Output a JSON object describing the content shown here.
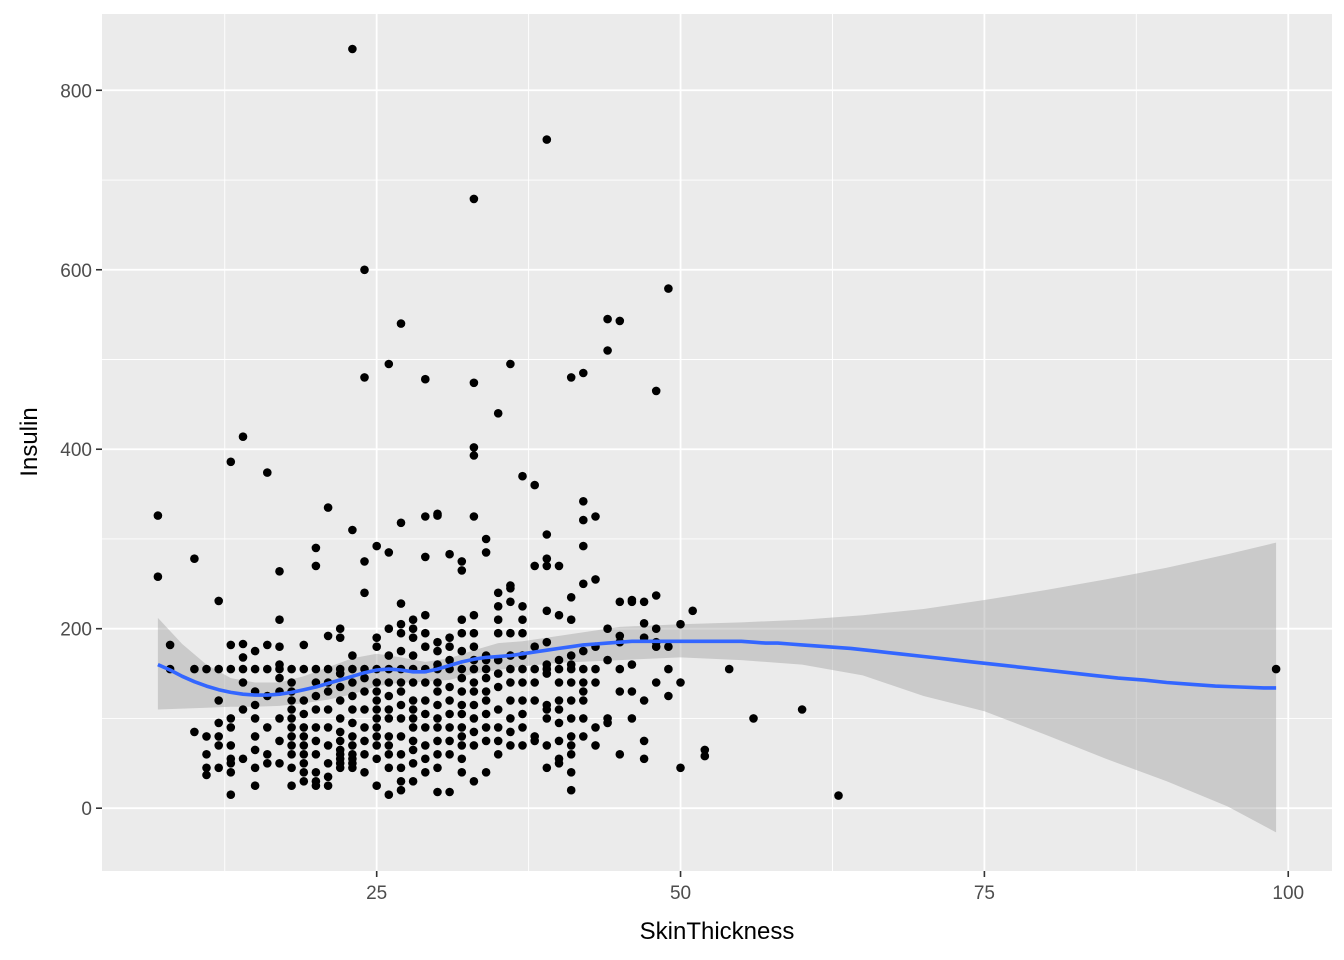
{
  "chart_data": {
    "type": "scatter",
    "title": "",
    "xlabel": "SkinThickness",
    "ylabel": "Insulin",
    "xlim": [
      2.4,
      103.6
    ],
    "ylim": [
      -70,
      885
    ],
    "x_ticks": [
      25,
      50,
      75,
      100
    ],
    "x_tick_labels": [
      "25",
      "50",
      "75",
      "100"
    ],
    "y_ticks": [
      0,
      200,
      400,
      600,
      800
    ],
    "y_tick_labels": [
      "0",
      "200",
      "400",
      "600",
      "800"
    ],
    "grid": true,
    "legend": "none",
    "colors": {
      "panel": "#EBEBEB",
      "grid": "#FFFFFF",
      "point": "#000000",
      "smooth_line": "#3366FF",
      "ribbon": "#999999"
    },
    "series": [
      {
        "kind": "points",
        "x": [
          7,
          7,
          8,
          8,
          10,
          10,
          10,
          11,
          11,
          11,
          11,
          11,
          12,
          12,
          12,
          12,
          12,
          12,
          12,
          13,
          13,
          13,
          13,
          13,
          13,
          13,
          13,
          13,
          13,
          14,
          14,
          14,
          14,
          14,
          14,
          14,
          15,
          15,
          15,
          15,
          15,
          15,
          15,
          15,
          15,
          16,
          16,
          16,
          16,
          16,
          16,
          16,
          17,
          17,
          17,
          17,
          17,
          17,
          17,
          17,
          17,
          17,
          18,
          18,
          18,
          18,
          18,
          18,
          18,
          18,
          18,
          18,
          18,
          18,
          19,
          19,
          19,
          19,
          19,
          19,
          19,
          19,
          19,
          19,
          19,
          20,
          20,
          20,
          20,
          20,
          20,
          20,
          20,
          20,
          20,
          20,
          20,
          21,
          21,
          21,
          21,
          21,
          21,
          21,
          21,
          21,
          21,
          21,
          22,
          22,
          22,
          22,
          22,
          22,
          22,
          22,
          22,
          22,
          22,
          22,
          22,
          22,
          23,
          23,
          23,
          23,
          23,
          23,
          23,
          23,
          23,
          23,
          23,
          23,
          23,
          23,
          24,
          24,
          24,
          24,
          24,
          24,
          24,
          24,
          24,
          24,
          24,
          24,
          25,
          25,
          25,
          25,
          25,
          25,
          25,
          25,
          25,
          25,
          25,
          25,
          25,
          25,
          26,
          26,
          26,
          26,
          26,
          26,
          26,
          26,
          26,
          26,
          26,
          26,
          26,
          26,
          27,
          27,
          27,
          27,
          27,
          27,
          27,
          27,
          27,
          27,
          27,
          27,
          27,
          27,
          27,
          27,
          28,
          28,
          28,
          28,
          28,
          28,
          28,
          28,
          28,
          28,
          28,
          28,
          28,
          28,
          29,
          29,
          29,
          29,
          29,
          29,
          29,
          29,
          29,
          29,
          29,
          29,
          29,
          29,
          30,
          30,
          30,
          30,
          30,
          30,
          30,
          30,
          30,
          30,
          30,
          30,
          30,
          30,
          30,
          31,
          31,
          31,
          31,
          31,
          31,
          31,
          31,
          31,
          31,
          31,
          31,
          32,
          32,
          32,
          32,
          32,
          32,
          32,
          32,
          32,
          32,
          32,
          32,
          32,
          32,
          32,
          33,
          33,
          33,
          33,
          33,
          33,
          33,
          33,
          33,
          33,
          33,
          33,
          33,
          33,
          33,
          33,
          33,
          34,
          34,
          34,
          34,
          34,
          34,
          34,
          34,
          34,
          34,
          34,
          34,
          35,
          35,
          35,
          35,
          35,
          35,
          35,
          35,
          35,
          35,
          35,
          35,
          36,
          36,
          36,
          36,
          36,
          36,
          36,
          36,
          36,
          36,
          36,
          36,
          37,
          37,
          37,
          37,
          37,
          37,
          37,
          37,
          37,
          37,
          37,
          38,
          38,
          38,
          38,
          38,
          38,
          38,
          38,
          39,
          39,
          39,
          39,
          39,
          39,
          39,
          39,
          39,
          39,
          39,
          39,
          39,
          39,
          40,
          40,
          40,
          40,
          40,
          40,
          40,
          40,
          40,
          40,
          40,
          41,
          41,
          41,
          41,
          41,
          41,
          41,
          41,
          41,
          41,
          41,
          41,
          41,
          41,
          42,
          42,
          42,
          42,
          42,
          42,
          42,
          42,
          42,
          42,
          42,
          42,
          43,
          43,
          43,
          43,
          43,
          43,
          43,
          44,
          44,
          44,
          44,
          44,
          44,
          45,
          45,
          45,
          45,
          45,
          45,
          45,
          46,
          46,
          46,
          46,
          46,
          47,
          47,
          47,
          47,
          47,
          47,
          48,
          48,
          48,
          48,
          48,
          48,
          49,
          49,
          49,
          49,
          50,
          50,
          50,
          51,
          52,
          52,
          54,
          56,
          60,
          63,
          99
        ],
        "y": [
          326,
          258,
          182,
          155,
          278,
          155,
          85,
          37,
          155,
          80,
          60,
          45,
          231,
          155,
          120,
          95,
          80,
          70,
          45,
          386,
          182,
          155,
          100,
          90,
          70,
          55,
          50,
          40,
          15,
          414,
          183,
          168,
          155,
          140,
          110,
          55,
          175,
          155,
          130,
          115,
          100,
          80,
          65,
          45,
          25,
          374,
          182,
          155,
          125,
          90,
          60,
          50,
          264,
          210,
          180,
          160,
          155,
          145,
          130,
          100,
          75,
          50,
          155,
          140,
          130,
          120,
          110,
          100,
          90,
          80,
          70,
          60,
          45,
          25,
          182,
          155,
          120,
          105,
          90,
          80,
          70,
          60,
          50,
          40,
          30,
          290,
          270,
          155,
          140,
          125,
          110,
          90,
          75,
          60,
          40,
          30,
          25,
          335,
          192,
          155,
          140,
          130,
          110,
          90,
          70,
          50,
          35,
          25,
          200,
          190,
          155,
          150,
          135,
          120,
          100,
          85,
          75,
          65,
          60,
          55,
          50,
          45,
          846,
          310,
          170,
          155,
          140,
          125,
          110,
          95,
          80,
          70,
          60,
          55,
          50,
          45,
          600,
          480,
          275,
          240,
          155,
          145,
          130,
          110,
          90,
          75,
          60,
          40,
          292,
          190,
          180,
          155,
          140,
          130,
          120,
          110,
          100,
          90,
          80,
          70,
          55,
          25,
          495,
          285,
          200,
          170,
          155,
          140,
          125,
          110,
          100,
          80,
          70,
          60,
          45,
          15,
          540,
          318,
          228,
          205,
          195,
          175,
          155,
          140,
          130,
          115,
          100,
          80,
          60,
          45,
          30,
          20,
          210,
          200,
          190,
          170,
          155,
          140,
          120,
          110,
          100,
          90,
          75,
          65,
          50,
          30,
          478,
          325,
          280,
          215,
          195,
          180,
          155,
          140,
          120,
          105,
          90,
          70,
          55,
          40,
          328,
          326,
          185,
          175,
          160,
          155,
          140,
          130,
          115,
          100,
          90,
          75,
          60,
          45,
          18,
          283,
          190,
          180,
          165,
          155,
          135,
          120,
          105,
          90,
          75,
          60,
          18,
          275,
          265,
          210,
          195,
          175,
          155,
          145,
          130,
          115,
          105,
          90,
          80,
          70,
          55,
          40,
          679,
          474,
          402,
          393,
          325,
          215,
          195,
          180,
          165,
          155,
          140,
          130,
          115,
          100,
          85,
          70,
          30,
          300,
          285,
          170,
          165,
          155,
          145,
          130,
          120,
          105,
          90,
          75,
          40,
          440,
          240,
          225,
          210,
          195,
          165,
          150,
          135,
          110,
          90,
          75,
          60,
          495,
          248,
          245,
          230,
          195,
          170,
          155,
          140,
          120,
          100,
          85,
          70,
          370,
          225,
          210,
          195,
          170,
          155,
          140,
          120,
          105,
          90,
          70,
          360,
          270,
          180,
          155,
          140,
          120,
          80,
          75,
          745,
          305,
          278,
          270,
          220,
          185,
          160,
          155,
          150,
          115,
          110,
          100,
          70,
          45,
          270,
          215,
          165,
          155,
          140,
          120,
          110,
          95,
          75,
          55,
          50,
          480,
          235,
          210,
          170,
          160,
          155,
          140,
          120,
          100,
          80,
          70,
          60,
          40,
          20,
          485,
          342,
          321,
          292,
          250,
          175,
          155,
          140,
          130,
          120,
          100,
          80,
          325,
          255,
          180,
          155,
          140,
          90,
          70,
          545,
          510,
          200,
          165,
          100,
          95,
          543,
          230,
          192,
          185,
          155,
          130,
          60,
          232,
          230,
          160,
          130,
          100,
          230,
          206,
          190,
          120,
          75,
          55,
          465,
          237,
          200,
          185,
          180,
          140,
          579,
          180,
          155,
          125,
          205,
          140,
          45,
          220,
          65,
          58,
          155,
          100,
          110,
          14,
          155
        ]
      },
      {
        "kind": "smooth",
        "x": [
          7,
          8,
          9,
          10,
          11,
          12,
          13,
          14,
          15,
          16,
          17,
          18,
          19,
          20,
          21,
          22,
          23,
          24,
          25,
          26,
          27,
          28,
          29,
          30,
          31,
          32,
          33,
          34,
          35,
          36,
          37,
          38,
          39,
          40,
          41,
          42,
          43,
          44,
          45,
          46,
          47,
          48,
          49,
          50,
          51,
          52,
          53,
          54,
          55,
          56,
          57,
          58,
          59,
          60,
          62,
          64,
          66,
          68,
          70,
          72,
          74,
          76,
          78,
          80,
          82,
          84,
          86,
          88,
          90,
          92,
          94,
          96,
          98,
          99
        ],
        "y": [
          160,
          154,
          147,
          141,
          136,
          132,
          129,
          127,
          126,
          126,
          127,
          129,
          132,
          135,
          139,
          143,
          147,
          151,
          154,
          155,
          154,
          152,
          152,
          155,
          159,
          163,
          166,
          168,
          169,
          170,
          172,
          174,
          176,
          178,
          180,
          182,
          183,
          184,
          185,
          186,
          186,
          186,
          186,
          186,
          186,
          186,
          186,
          186,
          186,
          185,
          184,
          184,
          183,
          182,
          180,
          178,
          175,
          172,
          169,
          166,
          163,
          160,
          157,
          154,
          151,
          148,
          145,
          143,
          140,
          138,
          136,
          135,
          134,
          134
        ]
      },
      {
        "kind": "confidence-band",
        "level": 0.95,
        "x": [
          7,
          9,
          11,
          13,
          15,
          17,
          19,
          21,
          23,
          25,
          27,
          29,
          31,
          33,
          35,
          37,
          40,
          45,
          50,
          55,
          60,
          65,
          70,
          75,
          80,
          85,
          90,
          95,
          99
        ],
        "lower": [
          110,
          111,
          112,
          113,
          113,
          114,
          117,
          121,
          127,
          136,
          140,
          141,
          143,
          150,
          154,
          158,
          162,
          165,
          168,
          165,
          160,
          148,
          125,
          108,
          82,
          55,
          30,
          2,
          -27
        ],
        "upper": [
          212,
          183,
          160,
          145,
          140,
          140,
          147,
          157,
          167,
          172,
          168,
          163,
          167,
          176,
          184,
          186,
          192,
          202,
          205,
          207,
          210,
          215,
          222,
          232,
          243,
          255,
          268,
          283,
          296
        ]
      }
    ]
  }
}
